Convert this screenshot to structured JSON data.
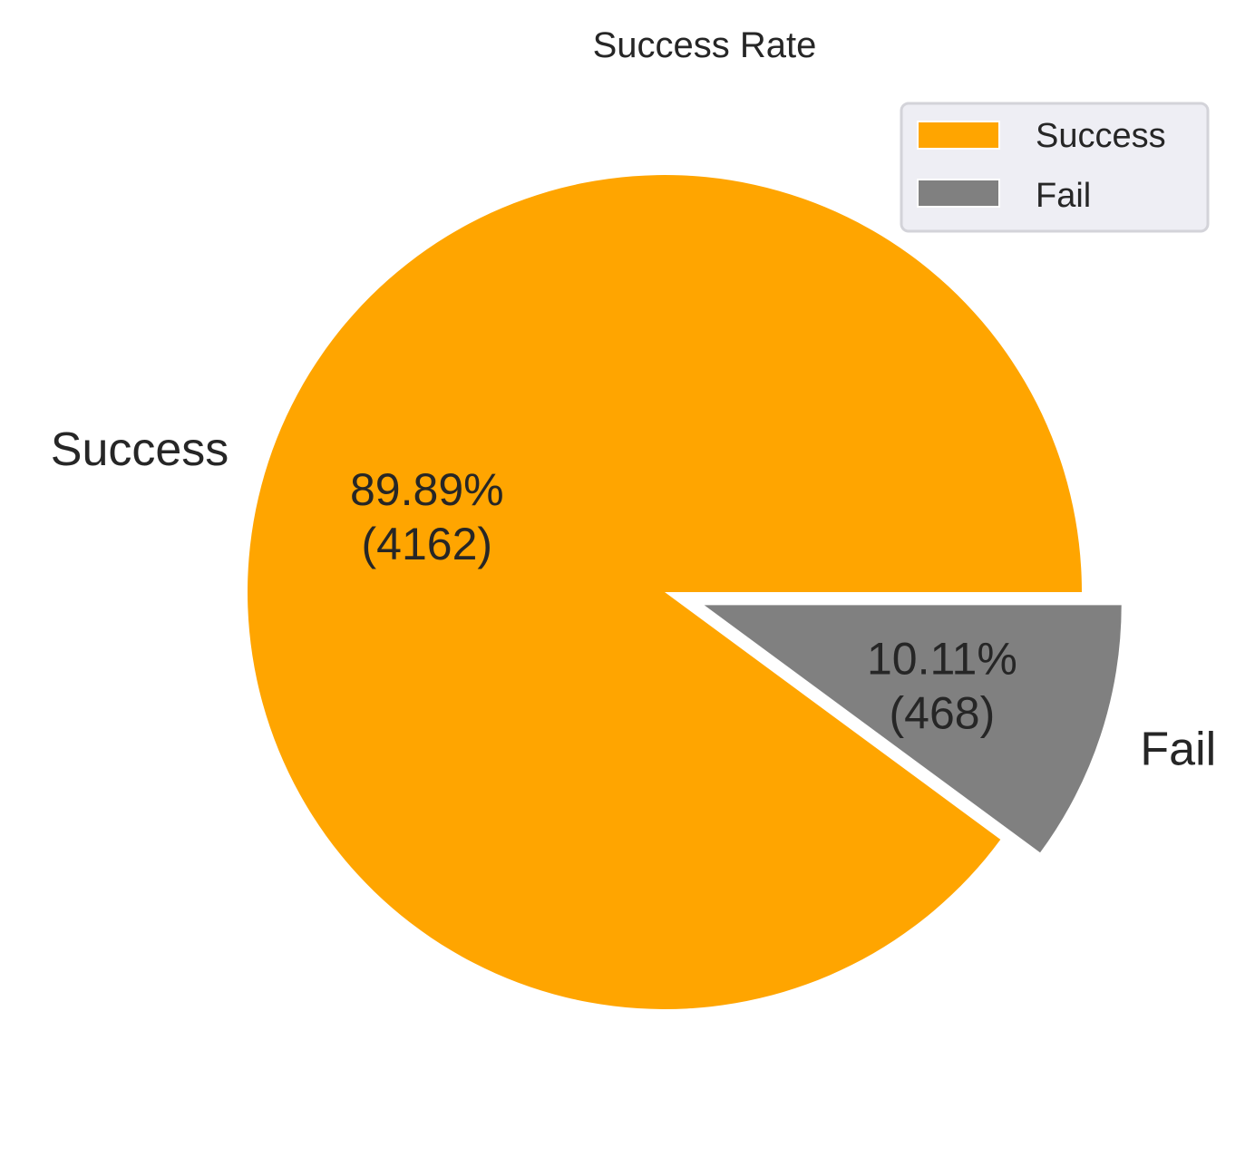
{
  "chart_data": {
    "type": "pie",
    "title": "Success Rate",
    "slices": [
      {
        "label": "Success",
        "value": 4162,
        "percent": "89.89%",
        "count_label": "(4162)",
        "color": "#FFA500",
        "explode": 0
      },
      {
        "label": "Fail",
        "value": 468,
        "percent": "10.11%",
        "count_label": "(468)",
        "color": "#808080",
        "explode": 0.1
      }
    ],
    "start_angle_deg": 0,
    "direction": "counterclockwise",
    "legend": {
      "position": "top-right",
      "entries": [
        "Success",
        "Fail"
      ]
    }
  }
}
